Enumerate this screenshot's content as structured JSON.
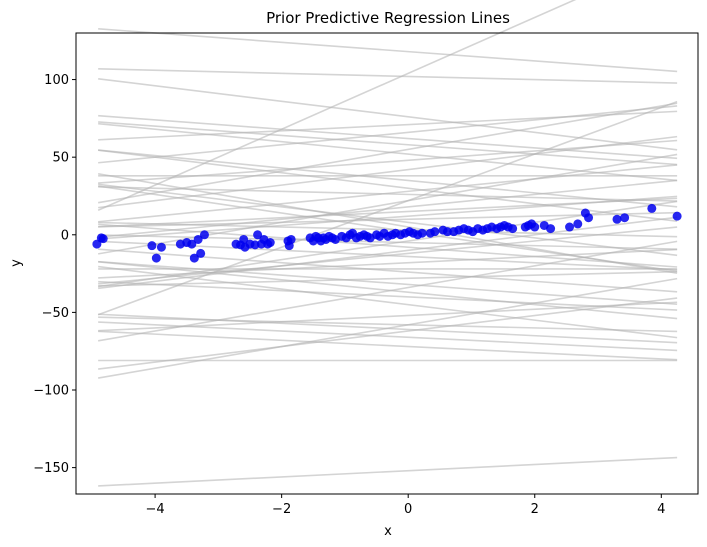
{
  "chart_data": {
    "type": "scatter",
    "title": "Prior Predictive Regression Lines",
    "xlabel": "x",
    "ylabel": "y",
    "xlim": [
      -5.25,
      4.58
    ],
    "ylim": [
      -167,
      130
    ],
    "xticks": [
      -4,
      -2,
      0,
      2,
      4
    ],
    "xtick_labels": [
      "−4",
      "−2",
      "0",
      "2",
      "4"
    ],
    "yticks": [
      -150,
      -100,
      -50,
      0,
      50,
      100
    ],
    "ytick_labels": [
      "−150",
      "−100",
      "−50",
      "0",
      "50",
      "100"
    ],
    "grid": false,
    "line_x_range": [
      -4.9,
      4.25
    ],
    "colors": {
      "points": "#0000ee",
      "lines": "#b0b0b0"
    },
    "series": [
      {
        "kind": "scatter",
        "points": [
          [
            -4.92,
            -6
          ],
          [
            -4.85,
            -2
          ],
          [
            -4.82,
            -2.5
          ],
          [
            -4.05,
            -7
          ],
          [
            -3.98,
            -15
          ],
          [
            -3.9,
            -8
          ],
          [
            -3.6,
            -6
          ],
          [
            -3.5,
            -5
          ],
          [
            -3.42,
            -6
          ],
          [
            -3.38,
            -15
          ],
          [
            -3.32,
            -3
          ],
          [
            -3.28,
            -12
          ],
          [
            -3.22,
            0
          ],
          [
            -2.72,
            -6
          ],
          [
            -2.65,
            -6.5
          ],
          [
            -2.6,
            -3
          ],
          [
            -2.58,
            -8
          ],
          [
            -2.5,
            -6
          ],
          [
            -2.42,
            -6.5
          ],
          [
            -2.38,
            0
          ],
          [
            -2.32,
            -6
          ],
          [
            -2.28,
            -3
          ],
          [
            -2.22,
            -6
          ],
          [
            -2.18,
            -5
          ],
          [
            -1.9,
            -4
          ],
          [
            -1.88,
            -7
          ],
          [
            -1.85,
            -3
          ],
          [
            -1.55,
            -2
          ],
          [
            -1.5,
            -4
          ],
          [
            -1.46,
            -1
          ],
          [
            -1.42,
            -2
          ],
          [
            -1.38,
            -4
          ],
          [
            -1.34,
            -2
          ],
          [
            -1.3,
            -3
          ],
          [
            -1.25,
            -1
          ],
          [
            -1.2,
            -2
          ],
          [
            -1.15,
            -3
          ],
          [
            -1.05,
            -1
          ],
          [
            -0.98,
            -2
          ],
          [
            -0.92,
            0
          ],
          [
            -0.88,
            1
          ],
          [
            -0.82,
            -2
          ],
          [
            -0.76,
            -1
          ],
          [
            -0.7,
            0
          ],
          [
            -0.65,
            -1
          ],
          [
            -0.6,
            -2
          ],
          [
            -0.5,
            0
          ],
          [
            -0.45,
            -1
          ],
          [
            -0.38,
            1
          ],
          [
            -0.32,
            -1
          ],
          [
            -0.25,
            0
          ],
          [
            -0.2,
            1
          ],
          [
            -0.12,
            0
          ],
          [
            -0.05,
            1
          ],
          [
            0.02,
            2
          ],
          [
            0.08,
            1
          ],
          [
            0.15,
            0
          ],
          [
            0.22,
            1
          ],
          [
            0.35,
            1
          ],
          [
            0.42,
            2
          ],
          [
            0.55,
            3
          ],
          [
            0.62,
            2
          ],
          [
            0.72,
            2
          ],
          [
            0.8,
            3
          ],
          [
            0.88,
            4
          ],
          [
            0.95,
            3
          ],
          [
            1.02,
            2
          ],
          [
            1.1,
            4
          ],
          [
            1.18,
            3
          ],
          [
            1.25,
            4
          ],
          [
            1.32,
            5
          ],
          [
            1.4,
            4
          ],
          [
            1.46,
            5
          ],
          [
            1.52,
            6
          ],
          [
            1.58,
            5
          ],
          [
            1.65,
            4
          ],
          [
            1.85,
            5
          ],
          [
            1.9,
            6
          ],
          [
            1.95,
            7
          ],
          [
            2.0,
            5
          ],
          [
            2.15,
            6
          ],
          [
            2.25,
            4
          ],
          [
            2.55,
            5
          ],
          [
            2.68,
            7
          ],
          [
            2.8,
            14
          ],
          [
            2.85,
            11
          ],
          [
            3.3,
            10
          ],
          [
            3.42,
            11
          ],
          [
            3.85,
            17
          ],
          [
            4.25,
            12
          ]
        ]
      },
      {
        "kind": "lines",
        "lines": [
          [
            -1,
            102
          ],
          [
            15,
            22
          ],
          [
            2,
            -152
          ],
          [
            -3,
            118
          ],
          [
            18,
            104
          ],
          [
            -5,
            76
          ],
          [
            2,
            71
          ],
          [
            -2,
            -66
          ],
          [
            4,
            66
          ],
          [
            -3,
            62
          ],
          [
            -2,
            -61
          ],
          [
            -1,
            -58
          ],
          [
            -3,
            58
          ],
          [
            7,
            55
          ],
          [
            -4,
            52
          ],
          [
            2,
            -52
          ],
          [
            3,
            48
          ],
          [
            -5,
            -45
          ],
          [
            5,
            42
          ],
          [
            -2,
            -40
          ],
          [
            0,
            38
          ],
          [
            -4,
            -37
          ],
          [
            -4,
            35
          ],
          [
            -3,
            -32
          ],
          [
            -5,
            30
          ],
          [
            4,
            28
          ],
          [
            1,
            -28
          ],
          [
            -1,
            26
          ],
          [
            -3,
            -24
          ],
          [
            7,
            22
          ],
          [
            4,
            18
          ],
          [
            2,
            -18
          ],
          [
            4,
            -12
          ],
          [
            3,
            12
          ],
          [
            5,
            -10
          ],
          [
            1,
            10
          ],
          [
            -5,
            8
          ],
          [
            -3,
            -8
          ],
          [
            -7,
            5
          ],
          [
            -1,
            -5
          ],
          [
            -1,
            3
          ],
          [
            -6,
            2
          ],
          [
            -2,
            -14
          ],
          [
            0,
            -22
          ],
          [
            7,
            -34
          ],
          [
            7,
            -58
          ],
          [
            5,
            -62
          ],
          [
            -2,
            -72
          ],
          [
            0,
            -81
          ],
          [
            2,
            15
          ],
          [
            6,
            -4
          ]
        ]
      }
    ]
  }
}
